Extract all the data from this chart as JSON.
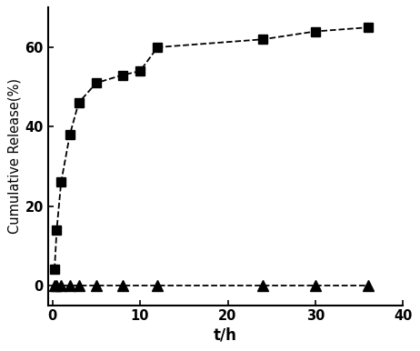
{
  "square_x": [
    0.25,
    0.5,
    1,
    2,
    3,
    5,
    8,
    10,
    12,
    24,
    30,
    36
  ],
  "square_y": [
    4,
    14,
    26,
    38,
    46,
    51,
    53,
    54,
    60,
    62,
    64,
    65
  ],
  "triangle_x": [
    0.25,
    0.5,
    1,
    2,
    3,
    5,
    8,
    12,
    24,
    30,
    36
  ],
  "triangle_y": [
    0,
    0,
    0,
    0,
    0,
    0,
    0,
    0,
    0,
    0,
    0
  ],
  "xlabel": "t/h",
  "ylabel": "Cumulative Release(%)",
  "xlim": [
    -0.5,
    38
  ],
  "ylim": [
    -5,
    70
  ],
  "xticks": [
    0,
    10,
    20,
    30,
    40
  ],
  "yticks": [
    0,
    20,
    40,
    60
  ],
  "line_color": "#000000",
  "background_color": "#ffffff",
  "xlabel_fontsize": 12,
  "ylabel_fontsize": 10.5,
  "tick_fontsize": 10.5
}
